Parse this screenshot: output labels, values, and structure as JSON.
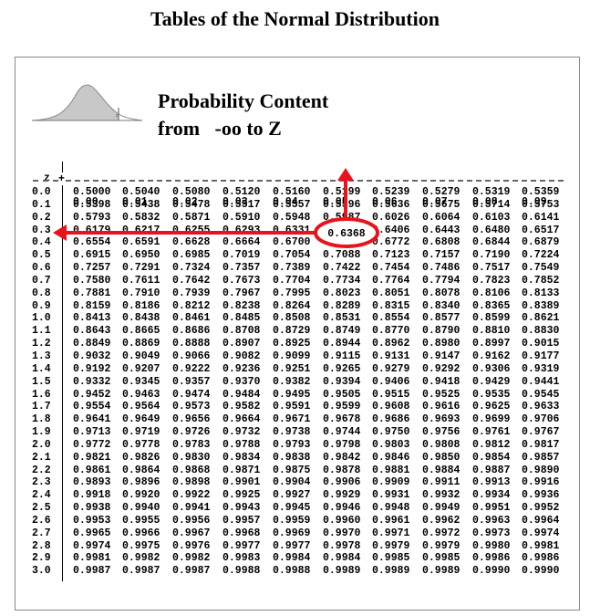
{
  "title": "Tables of the Normal Distribution",
  "subtitle": {
    "line1": "Probability Content",
    "line2": "from   -oo to Z"
  },
  "figure": {
    "z_label": "z"
  },
  "table": {
    "z_header": "z",
    "columns": [
      "0.00",
      "0.01",
      "0.02",
      "0.03",
      "0.04",
      "0.05",
      "0.06",
      "0.07",
      "0.08",
      "0.09"
    ],
    "rows": [
      {
        "z": "0.0",
        "values": [
          "0.5000",
          "0.5040",
          "0.5080",
          "0.5120",
          "0.5160",
          "0.5199",
          "0.5239",
          "0.5279",
          "0.5319",
          "0.5359"
        ]
      },
      {
        "z": "0.1",
        "values": [
          "0.5398",
          "0.5438",
          "0.5478",
          "0.5517",
          "0.5557",
          "0.5596",
          "0.5636",
          "0.5675",
          "0.5714",
          "0.5753"
        ]
      },
      {
        "z": "0.2",
        "values": [
          "0.5793",
          "0.5832",
          "0.5871",
          "0.5910",
          "0.5948",
          "0.5987",
          "0.6026",
          "0.6064",
          "0.6103",
          "0.6141"
        ]
      },
      {
        "z": "0.3",
        "values": [
          "0.6179",
          "0.6217",
          "0.6255",
          "0.6293",
          "0.6331",
          "0.6368",
          "0.6406",
          "0.6443",
          "0.6480",
          "0.6517"
        ]
      },
      {
        "z": "0.4",
        "values": [
          "0.6554",
          "0.6591",
          "0.6628",
          "0.6664",
          "0.6700",
          "0.6736",
          "0.6772",
          "0.6808",
          "0.6844",
          "0.6879"
        ]
      },
      {
        "z": "0.5",
        "values": [
          "0.6915",
          "0.6950",
          "0.6985",
          "0.7019",
          "0.7054",
          "0.7088",
          "0.7123",
          "0.7157",
          "0.7190",
          "0.7224"
        ]
      },
      {
        "z": "0.6",
        "values": [
          "0.7257",
          "0.7291",
          "0.7324",
          "0.7357",
          "0.7389",
          "0.7422",
          "0.7454",
          "0.7486",
          "0.7517",
          "0.7549"
        ]
      },
      {
        "z": "0.7",
        "values": [
          "0.7580",
          "0.7611",
          "0.7642",
          "0.7673",
          "0.7704",
          "0.7734",
          "0.7764",
          "0.7794",
          "0.7823",
          "0.7852"
        ]
      },
      {
        "z": "0.8",
        "values": [
          "0.7881",
          "0.7910",
          "0.7939",
          "0.7967",
          "0.7995",
          "0.8023",
          "0.8051",
          "0.8078",
          "0.8106",
          "0.8133"
        ]
      },
      {
        "z": "0.9",
        "values": [
          "0.8159",
          "0.8186",
          "0.8212",
          "0.8238",
          "0.8264",
          "0.8289",
          "0.8315",
          "0.8340",
          "0.8365",
          "0.8389"
        ]
      },
      {
        "z": "1.0",
        "values": [
          "0.8413",
          "0.8438",
          "0.8461",
          "0.8485",
          "0.8508",
          "0.8531",
          "0.8554",
          "0.8577",
          "0.8599",
          "0.8621"
        ]
      },
      {
        "z": "1.1",
        "values": [
          "0.8643",
          "0.8665",
          "0.8686",
          "0.8708",
          "0.8729",
          "0.8749",
          "0.8770",
          "0.8790",
          "0.8810",
          "0.8830"
        ]
      },
      {
        "z": "1.2",
        "values": [
          "0.8849",
          "0.8869",
          "0.8888",
          "0.8907",
          "0.8925",
          "0.8944",
          "0.8962",
          "0.8980",
          "0.8997",
          "0.9015"
        ]
      },
      {
        "z": "1.3",
        "values": [
          "0.9032",
          "0.9049",
          "0.9066",
          "0.9082",
          "0.9099",
          "0.9115",
          "0.9131",
          "0.9147",
          "0.9162",
          "0.9177"
        ]
      },
      {
        "z": "1.4",
        "values": [
          "0.9192",
          "0.9207",
          "0.9222",
          "0.9236",
          "0.9251",
          "0.9265",
          "0.9279",
          "0.9292",
          "0.9306",
          "0.9319"
        ]
      },
      {
        "z": "1.5",
        "values": [
          "0.9332",
          "0.9345",
          "0.9357",
          "0.9370",
          "0.9382",
          "0.9394",
          "0.9406",
          "0.9418",
          "0.9429",
          "0.9441"
        ]
      },
      {
        "z": "1.6",
        "values": [
          "0.9452",
          "0.9463",
          "0.9474",
          "0.9484",
          "0.9495",
          "0.9505",
          "0.9515",
          "0.9525",
          "0.9535",
          "0.9545"
        ]
      },
      {
        "z": "1.7",
        "values": [
          "0.9554",
          "0.9564",
          "0.9573",
          "0.9582",
          "0.9591",
          "0.9599",
          "0.9608",
          "0.9616",
          "0.9625",
          "0.9633"
        ]
      },
      {
        "z": "1.8",
        "values": [
          "0.9641",
          "0.9649",
          "0.9656",
          "0.9664",
          "0.9671",
          "0.9678",
          "0.9686",
          "0.9693",
          "0.9699",
          "0.9706"
        ]
      },
      {
        "z": "1.9",
        "values": [
          "0.9713",
          "0.9719",
          "0.9726",
          "0.9732",
          "0.9738",
          "0.9744",
          "0.9750",
          "0.9756",
          "0.9761",
          "0.9767"
        ]
      },
      {
        "z": "2.0",
        "values": [
          "0.9772",
          "0.9778",
          "0.9783",
          "0.9788",
          "0.9793",
          "0.9798",
          "0.9803",
          "0.9808",
          "0.9812",
          "0.9817"
        ]
      },
      {
        "z": "2.1",
        "values": [
          "0.9821",
          "0.9826",
          "0.9830",
          "0.9834",
          "0.9838",
          "0.9842",
          "0.9846",
          "0.9850",
          "0.9854",
          "0.9857"
        ]
      },
      {
        "z": "2.2",
        "values": [
          "0.9861",
          "0.9864",
          "0.9868",
          "0.9871",
          "0.9875",
          "0.9878",
          "0.9881",
          "0.9884",
          "0.9887",
          "0.9890"
        ]
      },
      {
        "z": "2.3",
        "values": [
          "0.9893",
          "0.9896",
          "0.9898",
          "0.9901",
          "0.9904",
          "0.9906",
          "0.9909",
          "0.9911",
          "0.9913",
          "0.9916"
        ]
      },
      {
        "z": "2.4",
        "values": [
          "0.9918",
          "0.9920",
          "0.9922",
          "0.9925",
          "0.9927",
          "0.9929",
          "0.9931",
          "0.9932",
          "0.9934",
          "0.9936"
        ]
      },
      {
        "z": "2.5",
        "values": [
          "0.9938",
          "0.9940",
          "0.9941",
          "0.9943",
          "0.9945",
          "0.9946",
          "0.9948",
          "0.9949",
          "0.9951",
          "0.9952"
        ]
      },
      {
        "z": "2.6",
        "values": [
          "0.9953",
          "0.9955",
          "0.9956",
          "0.9957",
          "0.9959",
          "0.9960",
          "0.9961",
          "0.9962",
          "0.9963",
          "0.9964"
        ]
      },
      {
        "z": "2.7",
        "values": [
          "0.9965",
          "0.9966",
          "0.9967",
          "0.9968",
          "0.9969",
          "0.9970",
          "0.9971",
          "0.9972",
          "0.9973",
          "0.9974"
        ]
      },
      {
        "z": "2.8",
        "values": [
          "0.9974",
          "0.9975",
          "0.9976",
          "0.9977",
          "0.9977",
          "0.9978",
          "0.9979",
          "0.9979",
          "0.9980",
          "0.9981"
        ]
      },
      {
        "z": "2.9",
        "values": [
          "0.9981",
          "0.9982",
          "0.9982",
          "0.9983",
          "0.9984",
          "0.9984",
          "0.9985",
          "0.9985",
          "0.9986",
          "0.9986"
        ]
      },
      {
        "z": "3.0",
        "values": [
          "0.9987",
          "0.9987",
          "0.9987",
          "0.9988",
          "0.9988",
          "0.9989",
          "0.9989",
          "0.9989",
          "0.9990",
          "0.9990"
        ]
      }
    ]
  },
  "annotation": {
    "highlighted_value": "0.6368",
    "highlighted_row": "0.3",
    "highlighted_column": "0.05",
    "color": "#e8141c"
  }
}
